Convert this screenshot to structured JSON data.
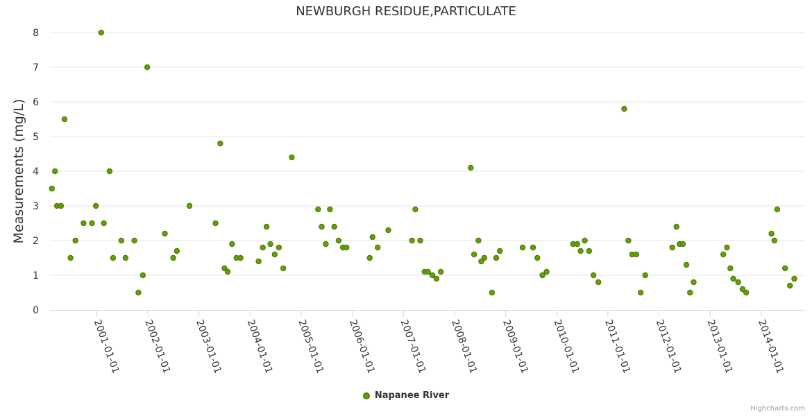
{
  "chart_data": {
    "type": "scatter",
    "title": "NEWBURGH RESIDUE,PARTICULATE",
    "xlabel": "",
    "ylabel": "Measurements (mg/L)",
    "ylim": [
      0,
      8
    ],
    "xlim": [
      "2000-02-01",
      "2014-11-10"
    ],
    "y_ticks": [
      "0",
      "1",
      "2",
      "3",
      "4",
      "5",
      "6",
      "7",
      "8"
    ],
    "x_ticks": [
      "2001-01-01",
      "2002-01-01",
      "2003-01-01",
      "2004-01-01",
      "2005-01-01",
      "2006-01-01",
      "2007-01-01",
      "2008-01-01",
      "2009-01-01",
      "2010-01-01",
      "2011-01-01",
      "2012-01-01",
      "2013-01-01",
      "2014-01-01"
    ],
    "grid": true,
    "legend_placement": "bottom-center",
    "series": [
      {
        "name": "Napanee River",
        "color": "#68a000",
        "points": [
          [
            "2000-02-15",
            3.5
          ],
          [
            "2000-03-08",
            4.0
          ],
          [
            "2000-03-22",
            3.0
          ],
          [
            "2000-04-20",
            3.0
          ],
          [
            "2000-05-15",
            5.5
          ],
          [
            "2000-06-27",
            1.5
          ],
          [
            "2000-08-01",
            2.0
          ],
          [
            "2000-09-28",
            2.5
          ],
          [
            "2000-11-27",
            2.5
          ],
          [
            "2000-12-25",
            3.0
          ],
          [
            "2001-02-01",
            8.0
          ],
          [
            "2001-02-20",
            2.5
          ],
          [
            "2001-04-02",
            4.0
          ],
          [
            "2001-04-27",
            1.5
          ],
          [
            "2001-06-25",
            2.0
          ],
          [
            "2001-07-25",
            1.5
          ],
          [
            "2001-09-26",
            2.0
          ],
          [
            "2001-10-25",
            0.5
          ],
          [
            "2001-11-26",
            1.0
          ],
          [
            "2001-12-27",
            7.0
          ],
          [
            "2002-05-02",
            2.2
          ],
          [
            "2002-07-01",
            1.5
          ],
          [
            "2002-07-27",
            1.7
          ],
          [
            "2002-10-25",
            3.0
          ],
          [
            "2003-04-29",
            2.5
          ],
          [
            "2003-06-02",
            4.8
          ],
          [
            "2003-07-02",
            1.2
          ],
          [
            "2003-07-25",
            1.1
          ],
          [
            "2003-08-25",
            1.9
          ],
          [
            "2003-09-26",
            1.5
          ],
          [
            "2003-10-25",
            1.5
          ],
          [
            "2004-03-02",
            1.4
          ],
          [
            "2004-04-01",
            1.8
          ],
          [
            "2004-04-28",
            2.4
          ],
          [
            "2004-05-25",
            1.9
          ],
          [
            "2004-06-25",
            1.6
          ],
          [
            "2004-07-25",
            1.8
          ],
          [
            "2004-08-25",
            1.2
          ],
          [
            "2004-10-25",
            4.4
          ],
          [
            "2005-05-01",
            2.9
          ],
          [
            "2005-05-27",
            2.4
          ],
          [
            "2005-06-25",
            1.9
          ],
          [
            "2005-07-25",
            2.9
          ],
          [
            "2005-08-25",
            2.4
          ],
          [
            "2005-09-25",
            2.0
          ],
          [
            "2005-10-25",
            1.8
          ],
          [
            "2005-11-20",
            1.8
          ],
          [
            "2006-05-05",
            1.5
          ],
          [
            "2006-05-25",
            2.1
          ],
          [
            "2006-07-01",
            1.8
          ],
          [
            "2006-09-15",
            2.3
          ],
          [
            "2007-03-03",
            2.0
          ],
          [
            "2007-03-27",
            2.9
          ],
          [
            "2007-05-01",
            2.0
          ],
          [
            "2007-06-01",
            1.1
          ],
          [
            "2007-06-25",
            1.1
          ],
          [
            "2007-07-27",
            1.0
          ],
          [
            "2007-08-25",
            0.9
          ],
          [
            "2007-09-25",
            1.1
          ],
          [
            "2008-04-26",
            4.1
          ],
          [
            "2008-05-20",
            1.6
          ],
          [
            "2008-06-20",
            2.0
          ],
          [
            "2008-07-10",
            1.4
          ],
          [
            "2008-08-01",
            1.5
          ],
          [
            "2008-09-25",
            0.5
          ],
          [
            "2008-10-25",
            1.5
          ],
          [
            "2008-11-20",
            1.7
          ],
          [
            "2009-05-02",
            1.8
          ],
          [
            "2009-07-15",
            1.8
          ],
          [
            "2009-08-15",
            1.5
          ],
          [
            "2009-09-20",
            1.0
          ],
          [
            "2009-10-20",
            1.1
          ],
          [
            "2010-04-27",
            1.9
          ],
          [
            "2010-05-27",
            1.9
          ],
          [
            "2010-06-20",
            1.7
          ],
          [
            "2010-07-20",
            2.0
          ],
          [
            "2010-08-20",
            1.7
          ],
          [
            "2010-09-20",
            1.0
          ],
          [
            "2010-10-25",
            0.8
          ],
          [
            "2011-04-28",
            5.8
          ],
          [
            "2011-05-27",
            2.0
          ],
          [
            "2011-06-23",
            1.6
          ],
          [
            "2011-07-23",
            1.6
          ],
          [
            "2011-08-23",
            0.5
          ],
          [
            "2011-09-25",
            1.0
          ],
          [
            "2012-04-05",
            1.8
          ],
          [
            "2012-05-05",
            2.4
          ],
          [
            "2012-05-27",
            1.9
          ],
          [
            "2012-06-20",
            1.9
          ],
          [
            "2012-07-15",
            1.3
          ],
          [
            "2012-08-10",
            0.5
          ],
          [
            "2012-09-05",
            0.8
          ],
          [
            "2013-04-05",
            1.6
          ],
          [
            "2013-05-01",
            1.8
          ],
          [
            "2013-05-25",
            1.2
          ],
          [
            "2013-06-15",
            0.9
          ],
          [
            "2013-07-20",
            0.8
          ],
          [
            "2013-08-20",
            0.6
          ],
          [
            "2013-09-15",
            0.5
          ],
          [
            "2014-03-15",
            2.2
          ],
          [
            "2014-04-05",
            2.0
          ],
          [
            "2014-04-25",
            2.9
          ],
          [
            "2014-06-20",
            1.2
          ],
          [
            "2014-07-25",
            0.7
          ],
          [
            "2014-08-25",
            0.9
          ]
        ]
      }
    ],
    "credits": "Highcharts.com"
  }
}
